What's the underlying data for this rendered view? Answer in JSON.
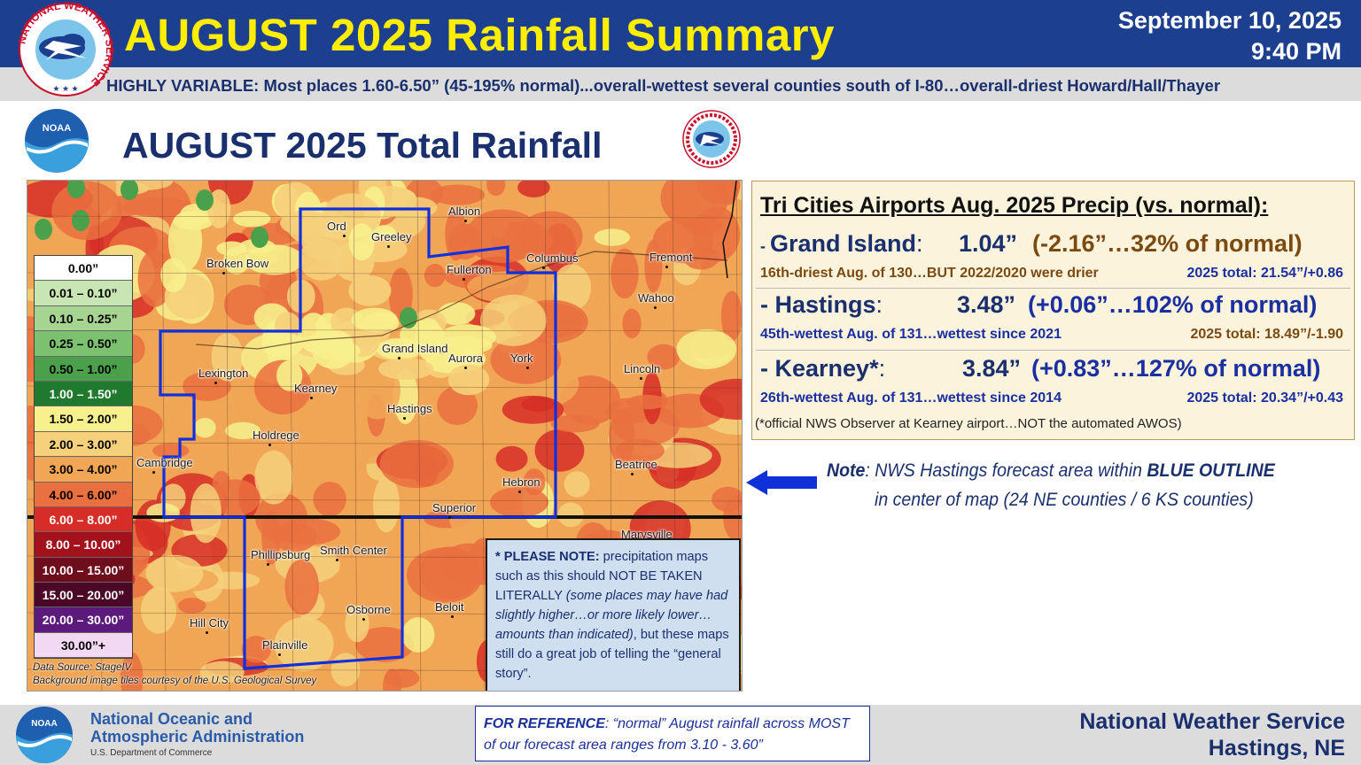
{
  "header": {
    "title": "AUGUST 2025 Rainfall Summary",
    "date": "September 10, 2025",
    "time": "9:40 PM",
    "logo_text": "NATIONAL WEATHER SERVICE",
    "summary": "HIGHLY VARIABLE: Most places 1.60-6.50” (45-195% normal)...overall-wettest several counties south of I-80…overall-driest Howard/Hall/Thayer"
  },
  "panel": {
    "title": "AUGUST 2025 Total Rainfall",
    "noaa_logo_text": "NOAA",
    "nws_logo_text": "NATIONAL WEATHER SERVICE"
  },
  "legend": [
    {
      "label": "0.00”",
      "color": "#ffffff",
      "text_color": "#000000"
    },
    {
      "label": "0.01 – 0.10”",
      "color": "#c8e6b4",
      "text_color": "#000000"
    },
    {
      "label": "0.10 – 0.25”",
      "color": "#a6d592",
      "text_color": "#000000"
    },
    {
      "label": "0.25 – 0.50”",
      "color": "#7cc170",
      "text_color": "#000000"
    },
    {
      "label": "0.50 – 1.00”",
      "color": "#4ba04b",
      "text_color": "#000000"
    },
    {
      "label": "1.00 – 1.50”",
      "color": "#1f7a2e",
      "text_color": "#ffffff"
    },
    {
      "label": "1.50 – 2.00”",
      "color": "#f7f08c",
      "text_color": "#000000"
    },
    {
      "label": "2.00 – 3.00”",
      "color": "#f6d07a",
      "text_color": "#000000"
    },
    {
      "label": "3.00 – 4.00”",
      "color": "#f1a656",
      "text_color": "#000000"
    },
    {
      "label": "4.00 – 6.00”",
      "color": "#ea7040",
      "text_color": "#000000"
    },
    {
      "label": "6.00 – 8.00”",
      "color": "#d62e26",
      "text_color": "#ffffff"
    },
    {
      "label": "8.00 – 10.00”",
      "color": "#a3121c",
      "text_color": "#ffffff"
    },
    {
      "label": "10.00 – 15.00”",
      "color": "#6e0d1c",
      "text_color": "#ffffff"
    },
    {
      "label": "15.00 – 20.00”",
      "color": "#4a0826",
      "text_color": "#ffffff"
    },
    {
      "label": "20.00 – 30.00”",
      "color": "#5c1a7d",
      "text_color": "#ffffff"
    },
    {
      "label": "30.00”+",
      "color": "#f2d8f2",
      "text_color": "#000000"
    }
  ],
  "cities": [
    "Ord",
    "Greeley",
    "Albion",
    "Broken Bow",
    "Fullerton",
    "Columbus",
    "Fremont",
    "Wahoo",
    "Grand Island",
    "Aurora",
    "York",
    "Lexington",
    "Kearney",
    "Lincoln",
    "Hastings",
    "Holdrege",
    "Cambridge",
    "Beatrice",
    "Hebron",
    "Superior",
    "Marysville",
    "Phillipsburg",
    "Smith Center",
    "Osborne",
    "Beloit",
    "Hill City",
    "Plainville"
  ],
  "map_source": {
    "line1": "Data Source: StageIV",
    "line2": "Background image tiles courtesy of the U.S. Geological Survey"
  },
  "map_note": {
    "bold": "* PLEASE NOTE:",
    "part1": " precipitation maps such as this should NOT BE TAKEN LITERALLY ",
    "italic": "(some places may have had slightly higher…or more likely lower… amounts than indicated)",
    "part2": ", but these maps still do a great job of telling the “general story”."
  },
  "tri_cities": {
    "title": "Tri Cities Airports Aug. 2025 Precip (vs. normal):",
    "sites": [
      {
        "prefix": "- ",
        "name": "Grand Island",
        "colon": ":",
        "amount": "1.04”",
        "departure": "(-2.16”…32% of normal)",
        "rank": "16th-driest Aug. of 130…BUT 2022/2020 were drier",
        "total": "2025 total: 21.54”/+0.86",
        "value_color": "#7a4a10",
        "sub_color": "#7a4a10"
      },
      {
        "prefix": "- ",
        "name": "Hastings",
        "colon": ":",
        "amount": "3.48”",
        "departure": "(+0.06”…102% of normal)",
        "rank": "45th-wettest Aug. of 131…wettest since 2021",
        "total": "2025 total: 18.49”/-1.90",
        "value_color": "#1a2fa0",
        "sub_color": "#1a2fa0"
      },
      {
        "prefix": "- ",
        "name": "Kearney*",
        "colon": ":",
        "amount": "3.84”",
        "departure": "(+0.83”…127% of normal)",
        "rank": "26th-wettest Aug. of 131…wettest since 2014",
        "total": "2025 total: 20.34”/+0.43",
        "value_color": "#1a2fa0",
        "sub_color": "#1a2fa0"
      }
    ],
    "footnote": "(*official NWS Observer at Kearney airport…NOT the automated AWOS)"
  },
  "outline_note": {
    "label": "Note",
    "text1": ": NWS Hastings forecast area within ",
    "bold": "BLUE OUTLINE",
    "text2": "in center of map (24 NE counties / 6 KS counties)"
  },
  "footer": {
    "noaa_line1": "National Oceanic and",
    "noaa_line2": "Atmospheric Administration",
    "noaa_dept": "U.S. Department of Commerce",
    "ref_label": "FOR REFERENCE",
    "ref_text": ": “normal” August rainfall across MOST of our forecast area ranges from 3.10 - 3.60”",
    "nws_line1": "National Weather Service",
    "nws_line2": "Hastings, NE"
  }
}
